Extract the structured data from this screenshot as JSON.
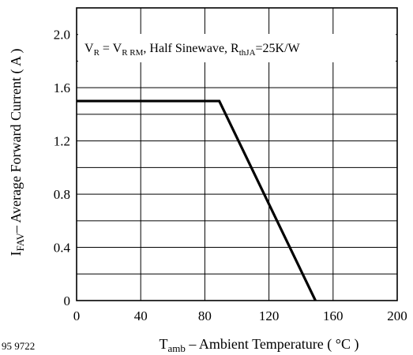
{
  "chart_data": {
    "type": "line",
    "title": "",
    "annotation": {
      "v": "V",
      "r_sub": "R",
      "eq": " = V",
      "rrm_sub": "R RM",
      "wave": ", Half Sinewave, R",
      "thja_sub": "thJA",
      "value": "=25K/W"
    },
    "xlabel": {
      "t": "T",
      "sub": "amb",
      "rest": " – Ambient Temperature ( °C )"
    },
    "ylabel": {
      "i": "I",
      "sub": "FAV",
      "rest": "– Average Forward Current ( A )"
    },
    "x_ticks": [
      "0",
      "40",
      "80",
      "120",
      "160",
      "200"
    ],
    "y_ticks": [
      "0",
      "0.4",
      "0.8",
      "1.2",
      "1.6",
      "2.0"
    ],
    "x_tick_values": [
      0,
      40,
      80,
      120,
      160,
      200
    ],
    "y_tick_values": [
      0,
      0.4,
      0.8,
      1.2,
      1.6,
      2.0
    ],
    "xlim": [
      0,
      200
    ],
    "ylim": [
      0,
      2.2
    ],
    "grid": true,
    "x_grid_step": 40,
    "y_grid_step": 0.2,
    "series": [
      {
        "x": [
          0,
          89,
          149
        ],
        "y": [
          1.5,
          1.5,
          0
        ]
      }
    ],
    "figure_number": "95 9722"
  }
}
